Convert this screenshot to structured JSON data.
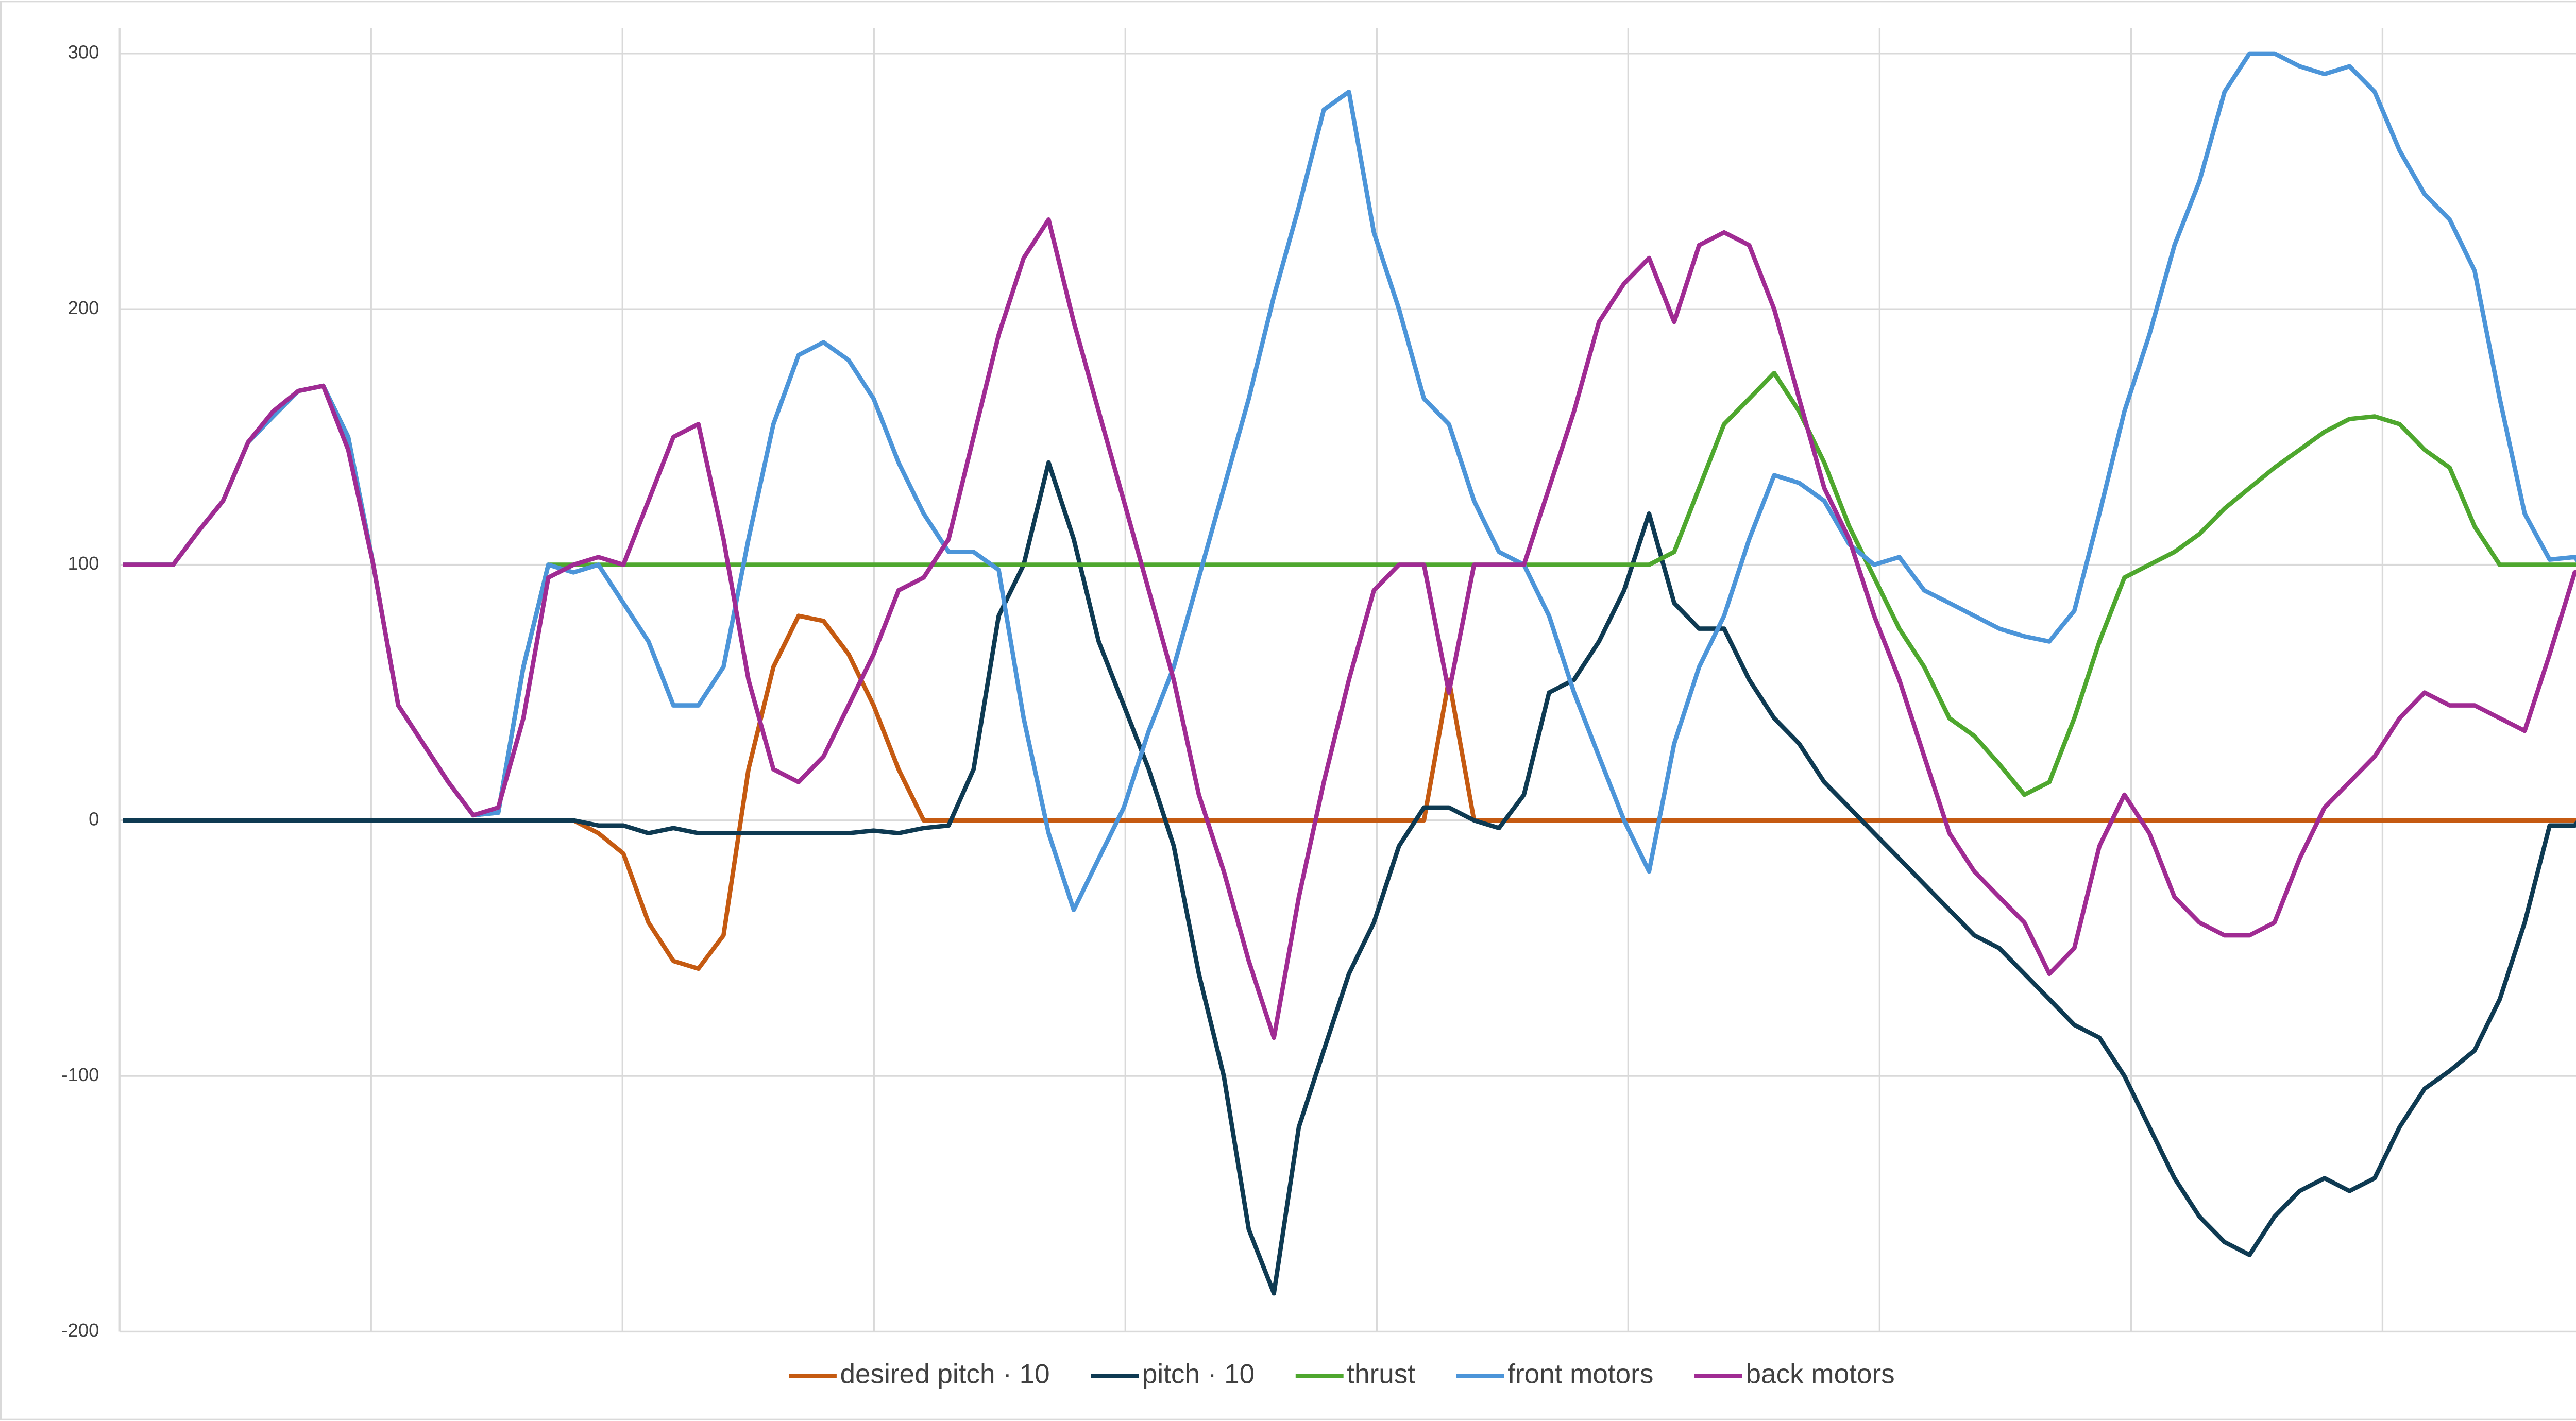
{
  "chart_data": {
    "type": "line",
    "categories": [
      null,
      null,
      null,
      null,
      null,
      null,
      null,
      null,
      null,
      null,
      null,
      null,
      null,
      null,
      null,
      null,
      null,
      null,
      null,
      null,
      null,
      null,
      null,
      null,
      null,
      null,
      null,
      null,
      null,
      null,
      null,
      null,
      null,
      null,
      null,
      null,
      null,
      null,
      null,
      null,
      null,
      null,
      null,
      null,
      null,
      null,
      null,
      null,
      null,
      null,
      null,
      null,
      null,
      null,
      null,
      null,
      null,
      null,
      null,
      null,
      null,
      null,
      null,
      null,
      null,
      null,
      null,
      null,
      null,
      null,
      null,
      null,
      null,
      null,
      null,
      null,
      null,
      null,
      null,
      null,
      null,
      null,
      null,
      null,
      null,
      null,
      null,
      null,
      null,
      null,
      null,
      null,
      null,
      null,
      null,
      null,
      null,
      null,
      null,
      null
    ],
    "ylim": [
      -200,
      300
    ],
    "yticks": [
      -200,
      -100,
      0,
      100,
      200,
      300
    ],
    "grid": true,
    "legend": "bottom",
    "series": [
      {
        "name": "desired pitch · 10",
        "color": "#c55a11",
        "values": [
          0,
          0,
          0,
          0,
          0,
          0,
          0,
          0,
          0,
          0,
          0,
          0,
          0,
          0,
          0,
          0,
          0,
          0,
          0,
          -5,
          -13,
          -40,
          -55,
          -58,
          -45,
          20,
          60,
          80,
          78,
          65,
          45,
          20,
          0,
          0,
          0,
          0,
          0,
          0,
          0,
          0,
          0,
          0,
          0,
          0,
          0,
          0,
          0,
          0,
          0,
          0,
          0,
          0,
          0,
          55,
          0,
          0,
          0,
          0,
          0,
          0,
          0,
          0,
          0,
          0,
          0,
          0,
          0,
          0,
          0,
          0,
          0,
          0,
          0,
          0,
          0,
          0,
          0,
          0,
          0,
          0,
          0,
          0,
          0,
          0,
          0,
          0,
          0,
          0,
          0,
          0,
          0,
          0,
          0,
          0,
          0,
          0,
          0,
          0,
          0,
          0
        ]
      },
      {
        "name": "pitch · 10",
        "color": "#0e3a52",
        "values": [
          0,
          0,
          0,
          0,
          0,
          0,
          0,
          0,
          0,
          0,
          0,
          0,
          0,
          0,
          0,
          0,
          0,
          0,
          0,
          -2,
          -2,
          -5,
          -3,
          -5,
          -5,
          -5,
          -5,
          -5,
          -5,
          -5,
          -4,
          -5,
          -3,
          -2,
          20,
          80,
          100,
          140,
          110,
          70,
          45,
          20,
          -10,
          -60,
          -100,
          -160,
          -185,
          -120,
          -90,
          -60,
          -40,
          -10,
          5,
          5,
          0,
          -3,
          10,
          50,
          55,
          70,
          90,
          120,
          85,
          75,
          75,
          55,
          40,
          30,
          15,
          5,
          -5,
          -15,
          -25,
          -35,
          -45,
          -50,
          -60,
          -70,
          -80,
          -85,
          -100,
          -120,
          -140,
          -155,
          -165,
          -170,
          -155,
          -145,
          -140,
          -145,
          -140,
          -120,
          -105,
          -98,
          -90,
          -70,
          -40,
          -2,
          -2,
          10
        ]
      },
      {
        "name": "thrust",
        "color": "#4ea72e",
        "values": [
          100,
          100,
          100,
          113,
          125,
          148,
          158,
          168,
          170,
          150,
          100,
          45,
          30,
          15,
          2,
          3,
          60,
          100,
          100,
          100,
          100,
          100,
          100,
          100,
          100,
          100,
          100,
          100,
          100,
          100,
          100,
          100,
          100,
          100,
          100,
          100,
          100,
          100,
          100,
          100,
          100,
          100,
          100,
          100,
          100,
          100,
          100,
          100,
          100,
          100,
          100,
          100,
          100,
          100,
          100,
          100,
          100,
          100,
          100,
          100,
          100,
          100,
          105,
          130,
          155,
          165,
          175,
          160,
          140,
          115,
          95,
          75,
          60,
          40,
          33,
          22,
          10,
          15,
          40,
          70,
          95,
          100,
          105,
          112,
          122,
          130,
          138,
          145,
          152,
          157,
          158,
          155,
          145,
          138,
          115,
          100,
          100,
          100,
          100,
          100
        ]
      },
      {
        "name": "front motors",
        "color": "#4c95d9",
        "values": [
          100,
          100,
          100,
          113,
          125,
          148,
          158,
          168,
          170,
          150,
          100,
          45,
          30,
          15,
          2,
          3,
          60,
          100,
          97,
          100,
          85,
          70,
          45,
          45,
          60,
          110,
          155,
          182,
          187,
          180,
          165,
          140,
          120,
          105,
          105,
          98,
          40,
          -5,
          -35,
          -15,
          5,
          35,
          60,
          95,
          130,
          165,
          205,
          240,
          278,
          285,
          230,
          200,
          165,
          155,
          125,
          105,
          100,
          80,
          50,
          25,
          0,
          -20,
          30,
          60,
          80,
          110,
          135,
          132,
          125,
          108,
          100,
          103,
          90,
          85,
          80,
          75,
          72,
          70,
          82,
          120,
          160,
          190,
          225,
          250,
          285,
          300,
          300,
          295,
          292,
          295,
          285,
          262,
          245,
          235,
          215,
          165,
          120,
          102,
          103,
          90
        ]
      },
      {
        "name": "back motors",
        "color": "#a02b93",
        "values": [
          100,
          100,
          100,
          113,
          125,
          148,
          160,
          168,
          170,
          145,
          100,
          45,
          30,
          15,
          2,
          5,
          40,
          95,
          100,
          103,
          100,
          125,
          150,
          155,
          110,
          55,
          20,
          15,
          25,
          45,
          65,
          90,
          95,
          110,
          150,
          190,
          220,
          235,
          195,
          160,
          125,
          90,
          55,
          10,
          -20,
          -55,
          -85,
          -30,
          15,
          55,
          90,
          100,
          100,
          50,
          100,
          100,
          100,
          130,
          160,
          195,
          210,
          220,
          195,
          225,
          230,
          225,
          200,
          165,
          130,
          110,
          80,
          55,
          25,
          -5,
          -20,
          -30,
          -40,
          -60,
          -50,
          -10,
          10,
          -5,
          -30,
          -40,
          -45,
          -45,
          -40,
          -15,
          5,
          15,
          25,
          40,
          50,
          45,
          45,
          40,
          35,
          65,
          97,
          100
        ]
      }
    ]
  }
}
